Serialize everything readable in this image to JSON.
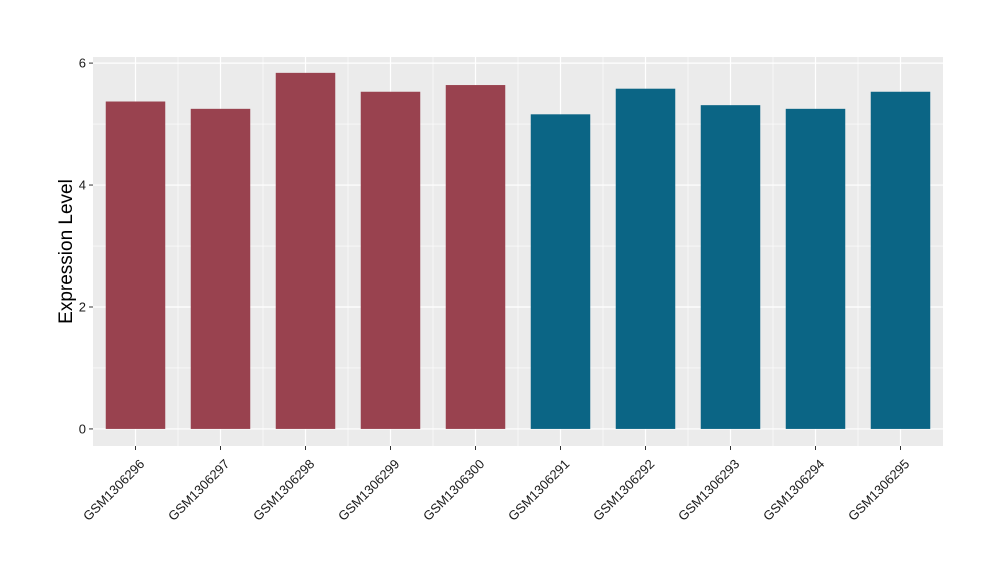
{
  "chart_data": {
    "type": "bar",
    "title": "",
    "xlabel": "",
    "ylabel": "Expression Level",
    "ylim": [
      -0.28,
      6.1
    ],
    "yticks": [
      0,
      2,
      4,
      6
    ],
    "grid": true,
    "legend": "none",
    "background_color": "#EBEBEB",
    "categories": [
      "GSM1306296",
      "GSM1306297",
      "GSM1306298",
      "GSM1306299",
      "GSM1306300",
      "GSM1306291",
      "GSM1306292",
      "GSM1306293",
      "GSM1306294",
      "GSM1306295"
    ],
    "values": [
      5.37,
      5.25,
      5.84,
      5.53,
      5.64,
      5.16,
      5.58,
      5.31,
      5.25,
      5.53
    ],
    "bar_colors": [
      "#99424F",
      "#99424F",
      "#99424F",
      "#99424F",
      "#99424F",
      "#0B6585",
      "#0B6585",
      "#0B6585",
      "#0B6585",
      "#0B6585"
    ]
  }
}
